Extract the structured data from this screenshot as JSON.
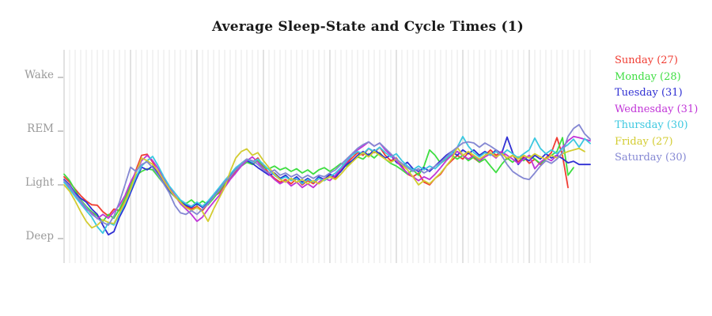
{
  "style": {
    "background": "#ffffff",
    "title_color": "#1a1a1a",
    "axis_label_color": "#9a9a9a",
    "tick_color": "#b0b0b0",
    "grid_minor": "#e7e7e7",
    "grid_major": "#c6c6c6"
  },
  "chart_data": {
    "type": "line",
    "title": "Average Sleep-State and Cycle Times (1)",
    "xlabel": "",
    "ylabel": "",
    "grid": "vertical-only",
    "legend_position": "right",
    "y_ticks": [
      {
        "label": "Wake",
        "value": 3
      },
      {
        "label": "REM",
        "value": 2
      },
      {
        "label": "Light",
        "value": 1
      },
      {
        "label": "Deep",
        "value": 0
      }
    ],
    "ylim": [
      -0.46,
      3.5
    ],
    "x_gridlines": {
      "count": 96,
      "major_every": 12
    },
    "value_scale_note": "values in sleep-state units: 0=Deep, 1=Light, 2=REM, 3=Wake; one point per minor gridline",
    "series": [
      {
        "name": "Sunday",
        "count": 27,
        "color": "#f03c32",
        "values": [
          1.15,
          1.05,
          0.92,
          0.8,
          0.7,
          0.63,
          0.62,
          0.5,
          0.42,
          0.55,
          0.52,
          0.7,
          0.95,
          1.28,
          1.55,
          1.57,
          1.42,
          1.22,
          1.05,
          0.92,
          0.8,
          0.67,
          0.6,
          0.55,
          0.6,
          0.52,
          0.65,
          0.78,
          0.85,
          1.0,
          1.12,
          1.25,
          1.4,
          1.48,
          1.42,
          1.5,
          1.35,
          1.22,
          1.12,
          1.05,
          1.1,
          1.02,
          1.12,
          1.0,
          1.08,
          1.02,
          1.12,
          1.08,
          1.18,
          1.12,
          1.28,
          1.4,
          1.5,
          1.6,
          1.55,
          1.68,
          1.6,
          1.7,
          1.55,
          1.45,
          1.5,
          1.35,
          1.2,
          1.15,
          1.22,
          1.05,
          1.0,
          1.12,
          1.2,
          1.35,
          1.45,
          1.55,
          1.48,
          1.6,
          1.5,
          1.42,
          1.55,
          1.65,
          1.55,
          1.62,
          1.48,
          1.55,
          1.43,
          1.52,
          1.4,
          1.48,
          1.38,
          1.5,
          1.6,
          1.88,
          1.55,
          0.95
        ]
      },
      {
        "name": "Monday",
        "count": 28,
        "color": "#3ede41",
        "values": [
          1.2,
          1.08,
          0.9,
          0.72,
          0.6,
          0.5,
          0.42,
          0.32,
          0.45,
          0.38,
          0.55,
          0.75,
          1.0,
          1.18,
          1.25,
          1.3,
          1.28,
          1.15,
          1.02,
          0.88,
          0.78,
          0.7,
          0.65,
          0.72,
          0.62,
          0.7,
          0.63,
          0.75,
          0.88,
          1.02,
          1.15,
          1.28,
          1.35,
          1.42,
          1.38,
          1.45,
          1.32,
          1.3,
          1.35,
          1.28,
          1.32,
          1.25,
          1.3,
          1.22,
          1.28,
          1.2,
          1.28,
          1.32,
          1.25,
          1.32,
          1.4,
          1.35,
          1.45,
          1.52,
          1.48,
          1.58,
          1.5,
          1.6,
          1.48,
          1.4,
          1.35,
          1.28,
          1.2,
          1.28,
          1.18,
          1.35,
          1.65,
          1.55,
          1.4,
          1.48,
          1.55,
          1.48,
          1.55,
          1.45,
          1.52,
          1.42,
          1.48,
          1.35,
          1.23,
          1.38,
          1.5,
          1.42,
          1.52,
          1.45,
          1.55,
          1.48,
          1.4,
          1.48,
          1.55,
          1.62,
          1.88,
          1.18,
          1.32
        ]
      },
      {
        "name": "Tuesday",
        "count": 31,
        "color": "#2f2fd3",
        "values": [
          1.1,
          1.0,
          0.85,
          0.75,
          0.68,
          0.55,
          0.45,
          0.25,
          0.07,
          0.13,
          0.4,
          0.6,
          0.85,
          1.1,
          1.33,
          1.28,
          1.35,
          1.2,
          1.05,
          0.9,
          0.78,
          0.68,
          0.62,
          0.58,
          0.65,
          0.58,
          0.68,
          0.8,
          0.92,
          1.05,
          1.18,
          1.3,
          1.38,
          1.45,
          1.4,
          1.32,
          1.25,
          1.18,
          1.22,
          1.12,
          1.18,
          1.08,
          1.15,
          1.05,
          1.12,
          1.05,
          1.15,
          1.1,
          1.2,
          1.15,
          1.25,
          1.38,
          1.45,
          1.55,
          1.62,
          1.55,
          1.65,
          1.58,
          1.5,
          1.55,
          1.42,
          1.35,
          1.42,
          1.3,
          1.25,
          1.32,
          1.25,
          1.35,
          1.45,
          1.55,
          1.62,
          1.55,
          1.65,
          1.58,
          1.65,
          1.55,
          1.62,
          1.55,
          1.65,
          1.58,
          1.89,
          1.6,
          1.38,
          1.5,
          1.45,
          1.55,
          1.48,
          1.58,
          1.5,
          1.55,
          1.49,
          1.41,
          1.44,
          1.38,
          1.38,
          1.38
        ]
      },
      {
        "name": "Wednesday",
        "count": 31,
        "color": "#c135d8",
        "values": [
          1.05,
          0.95,
          0.8,
          0.68,
          0.55,
          0.48,
          0.37,
          0.45,
          0.38,
          0.5,
          0.62,
          0.8,
          1.05,
          1.25,
          1.45,
          1.55,
          1.45,
          1.3,
          1.12,
          0.95,
          0.8,
          0.65,
          0.55,
          0.45,
          0.32,
          0.4,
          0.55,
          0.68,
          0.8,
          0.95,
          1.1,
          1.22,
          1.35,
          1.45,
          1.52,
          1.42,
          1.3,
          1.2,
          1.1,
          1.02,
          1.08,
          0.98,
          1.05,
          0.95,
          1.02,
          0.95,
          1.05,
          1.12,
          1.08,
          1.18,
          1.3,
          1.42,
          1.55,
          1.65,
          1.72,
          1.8,
          1.72,
          1.78,
          1.65,
          1.55,
          1.45,
          1.32,
          1.22,
          1.15,
          1.08,
          1.15,
          1.1,
          1.2,
          1.32,
          1.45,
          1.55,
          1.62,
          1.55,
          1.48,
          1.55,
          1.45,
          1.52,
          1.58,
          1.5,
          1.62,
          1.55,
          1.48,
          1.4,
          1.48,
          1.55,
          1.3,
          1.42,
          1.5,
          1.45,
          1.55,
          1.7,
          1.82,
          1.9,
          1.88,
          1.85,
          1.82
        ]
      },
      {
        "name": "Thursday",
        "count": 30,
        "color": "#3cc8e0",
        "values": [
          1.05,
          0.92,
          0.78,
          0.65,
          0.52,
          0.4,
          0.22,
          0.1,
          0.3,
          0.25,
          0.45,
          0.65,
          0.9,
          1.15,
          1.35,
          1.45,
          1.53,
          1.35,
          1.15,
          0.98,
          0.85,
          0.72,
          0.65,
          0.6,
          0.68,
          0.6,
          0.7,
          0.82,
          0.95,
          1.08,
          1.2,
          1.32,
          1.4,
          1.48,
          1.42,
          1.48,
          1.38,
          1.28,
          1.18,
          1.1,
          1.15,
          1.08,
          1.12,
          1.02,
          1.1,
          1.05,
          1.12,
          1.08,
          1.15,
          1.22,
          1.32,
          1.45,
          1.55,
          1.62,
          1.58,
          1.68,
          1.62,
          1.7,
          1.6,
          1.52,
          1.58,
          1.45,
          1.35,
          1.28,
          1.35,
          1.28,
          1.35,
          1.3,
          1.4,
          1.5,
          1.58,
          1.7,
          1.9,
          1.72,
          1.6,
          1.52,
          1.6,
          1.55,
          1.62,
          1.55,
          1.65,
          1.58,
          1.5,
          1.58,
          1.65,
          1.87,
          1.68,
          1.58,
          1.65,
          1.58,
          1.68,
          1.75,
          1.85,
          1.7,
          1.86,
          1.77
        ]
      },
      {
        "name": "Friday",
        "count": 27,
        "color": "#d3cc31",
        "values": [
          1.0,
          0.88,
          0.7,
          0.5,
          0.32,
          0.2,
          0.25,
          0.35,
          0.3,
          0.28,
          0.48,
          0.68,
          0.92,
          1.22,
          1.5,
          1.45,
          1.38,
          1.25,
          1.08,
          0.92,
          0.78,
          0.68,
          0.58,
          0.52,
          0.58,
          0.5,
          0.32,
          0.55,
          0.75,
          0.95,
          1.25,
          1.5,
          1.62,
          1.67,
          1.55,
          1.6,
          1.45,
          1.32,
          1.2,
          1.1,
          1.05,
          1.12,
          1.05,
          1.1,
          1.02,
          1.08,
          1.02,
          1.1,
          1.15,
          1.1,
          1.2,
          1.32,
          1.42,
          1.52,
          1.6,
          1.52,
          1.62,
          1.55,
          1.48,
          1.42,
          1.48,
          1.38,
          1.28,
          1.15,
          1.0,
          1.08,
          1.02,
          1.12,
          1.22,
          1.35,
          1.48,
          1.7,
          1.55,
          1.62,
          1.55,
          1.48,
          1.55,
          1.6,
          1.52,
          1.58,
          1.5,
          1.55,
          1.48,
          1.55,
          1.5,
          1.58,
          1.52,
          1.48,
          1.55,
          1.5,
          1.58,
          1.62,
          1.65,
          1.68,
          1.62
        ]
      },
      {
        "name": "Saturday",
        "count": 30,
        "color": "#8487d3",
        "values": [
          1.08,
          0.98,
          0.82,
          0.7,
          0.58,
          0.45,
          0.38,
          0.3,
          0.25,
          0.42,
          0.68,
          1.0,
          1.33,
          1.25,
          1.38,
          1.43,
          1.32,
          1.18,
          1.02,
          0.85,
          0.62,
          0.48,
          0.45,
          0.52,
          0.45,
          0.55,
          0.65,
          0.78,
          0.9,
          1.05,
          1.15,
          1.28,
          1.38,
          1.48,
          1.45,
          1.38,
          1.28,
          1.22,
          1.28,
          1.18,
          1.22,
          1.15,
          1.2,
          1.12,
          1.18,
          1.12,
          1.18,
          1.15,
          1.22,
          1.28,
          1.38,
          1.48,
          1.58,
          1.68,
          1.75,
          1.8,
          1.72,
          1.78,
          1.68,
          1.58,
          1.48,
          1.4,
          1.32,
          1.25,
          1.3,
          1.22,
          1.28,
          1.35,
          1.42,
          1.52,
          1.62,
          1.7,
          1.78,
          1.8,
          1.78,
          1.7,
          1.78,
          1.72,
          1.65,
          1.55,
          1.38,
          1.25,
          1.18,
          1.12,
          1.1,
          1.22,
          1.35,
          1.45,
          1.4,
          1.48,
          1.6,
          1.9,
          2.05,
          2.12,
          1.95,
          1.85
        ]
      }
    ]
  }
}
